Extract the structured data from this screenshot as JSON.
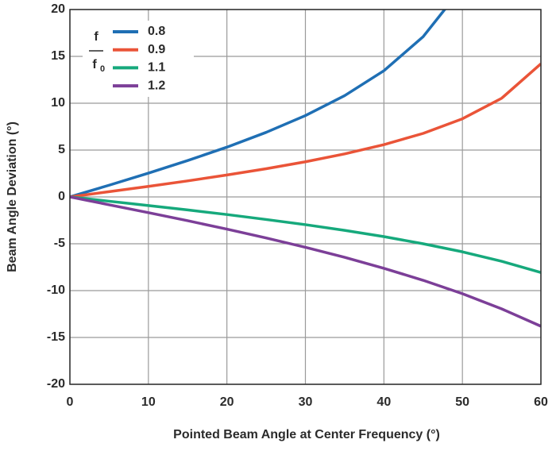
{
  "chart_data": {
    "type": "line",
    "x_label": "Pointed Beam Angle at Center Frequency (°)",
    "y_label": "Beam Angle Deviation (°)",
    "legend_title": {
      "numerator": "f",
      "denominator": "f",
      "denominator_subscript": "0"
    },
    "legend_position": "upper-left",
    "grid": true,
    "xlim": [
      0,
      60
    ],
    "xticks": [
      0,
      10,
      20,
      30,
      40,
      50,
      60
    ],
    "ylim": [
      -20,
      20
    ],
    "yticks": [
      -20,
      -15,
      -10,
      -5,
      0,
      5,
      10,
      15,
      20
    ],
    "series": [
      {
        "name": "0.8",
        "color": "#1f6fb4",
        "x": [
          0,
          5,
          10,
          15,
          20,
          25,
          30,
          35,
          40,
          45,
          48
        ],
        "values": [
          0,
          1.25,
          2.54,
          3.88,
          5.31,
          6.89,
          8.68,
          10.81,
          13.47,
          17.1,
          20.27
        ]
      },
      {
        "name": "0.9",
        "color": "#ea5438",
        "x": [
          0,
          5,
          10,
          15,
          20,
          25,
          30,
          35,
          40,
          45,
          50,
          55,
          60
        ],
        "values": [
          0,
          0.56,
          1.12,
          1.71,
          2.34,
          3.01,
          3.75,
          4.59,
          5.58,
          6.78,
          8.34,
          10.53,
          14.21
        ]
      },
      {
        "name": "1.1",
        "color": "#16a97c",
        "x": [
          0,
          5,
          10,
          15,
          20,
          25,
          30,
          35,
          40,
          45,
          50,
          55,
          60
        ],
        "values": [
          0,
          -0.46,
          -0.92,
          -1.39,
          -1.88,
          -2.41,
          -2.96,
          -3.57,
          -4.24,
          -5.0,
          -5.86,
          -6.87,
          -8.07
        ]
      },
      {
        "name": "1.2",
        "color": "#7c3f98",
        "x": [
          0,
          5,
          10,
          15,
          20,
          25,
          30,
          35,
          40,
          45,
          50,
          55,
          60
        ],
        "values": [
          0,
          -0.84,
          -1.68,
          -2.54,
          -3.44,
          -4.38,
          -5.38,
          -6.45,
          -7.62,
          -8.9,
          -10.33,
          -11.95,
          -13.8
        ]
      }
    ]
  }
}
